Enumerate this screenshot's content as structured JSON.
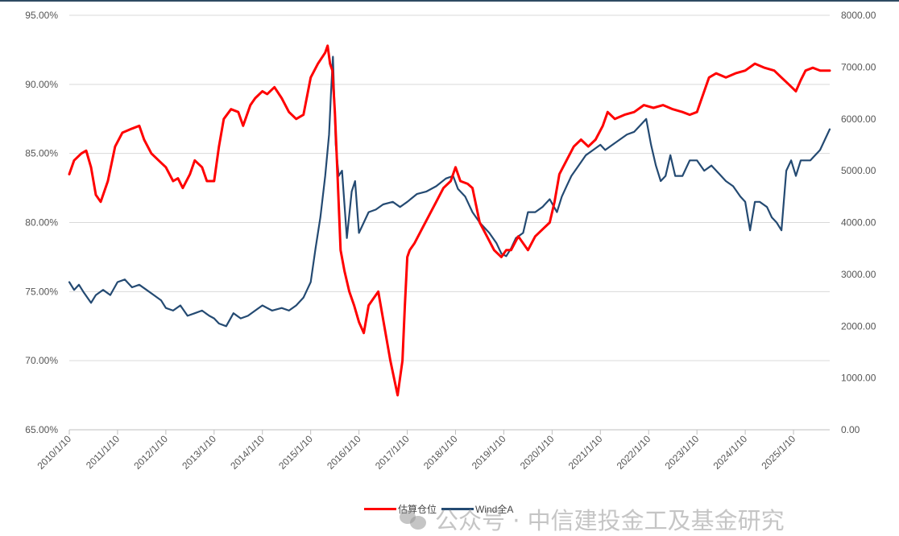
{
  "chart_data": {
    "type": "line",
    "left_axis": {
      "ticks": [
        "95.00%",
        "90.00%",
        "85.00%",
        "80.00%",
        "75.00%",
        "70.00%",
        "65.00%"
      ],
      "range": [
        65,
        95
      ]
    },
    "right_axis": {
      "ticks": [
        "8000.00",
        "7000.00",
        "6000.00",
        "5000.00",
        "4000.00",
        "3000.00",
        "2000.00",
        "1000.00",
        "0.00"
      ],
      "range": [
        0,
        8000
      ]
    },
    "x_ticks": [
      "2010/1/10",
      "2011/1/10",
      "2012/1/10",
      "2013/1/10",
      "2014/1/10",
      "2015/1/10",
      "2016/1/10",
      "2017/1/10",
      "2018/1/10",
      "2019/1/10",
      "2020/1/10",
      "2021/1/10",
      "2022/1/10",
      "2023/1/10",
      "2024/1/10",
      "2025/1/10"
    ],
    "x_range": [
      2010.0,
      2025.75
    ],
    "grid": "horizontal",
    "legend_position": "bottom",
    "series": [
      {
        "name": "估算仓位",
        "axis": "left",
        "color": "#ff0000",
        "x": [
          2010.0,
          2010.1,
          2010.25,
          2010.35,
          2010.45,
          2010.55,
          2010.65,
          2010.8,
          2010.95,
          2011.1,
          2011.3,
          2011.45,
          2011.55,
          2011.7,
          2011.85,
          2012.0,
          2012.15,
          2012.25,
          2012.35,
          2012.5,
          2012.6,
          2012.75,
          2012.85,
          2013.0,
          2013.1,
          2013.2,
          2013.35,
          2013.5,
          2013.6,
          2013.75,
          2013.85,
          2014.0,
          2014.1,
          2014.25,
          2014.4,
          2014.55,
          2014.7,
          2014.85,
          2015.0,
          2015.15,
          2015.3,
          2015.35,
          2015.4,
          2015.45,
          2015.5,
          2015.55,
          2015.62,
          2015.7,
          2015.8,
          2015.9,
          2016.0,
          2016.1,
          2016.2,
          2016.3,
          2016.4,
          2016.5,
          2016.65,
          2016.8,
          2016.9,
          2016.95,
          2017.0,
          2017.05,
          2017.15,
          2017.3,
          2017.45,
          2017.6,
          2017.75,
          2017.9,
          2018.0,
          2018.1,
          2018.25,
          2018.35,
          2018.5,
          2018.65,
          2018.8,
          2018.95,
          2019.05,
          2019.15,
          2019.3,
          2019.5,
          2019.65,
          2019.8,
          2019.95,
          2020.05,
          2020.15,
          2020.3,
          2020.45,
          2020.6,
          2020.75,
          2020.9,
          2021.05,
          2021.15,
          2021.3,
          2021.5,
          2021.7,
          2021.9,
          2022.1,
          2022.3,
          2022.5,
          2022.7,
          2022.85,
          2023.0,
          2023.1,
          2023.25,
          2023.4,
          2023.6,
          2023.8,
          2024.0,
          2024.2,
          2024.4,
          2024.6,
          2024.75,
          2024.9,
          2025.05,
          2025.15,
          2025.25,
          2025.4,
          2025.55,
          2025.75
        ],
        "values": [
          83.5,
          84.5,
          85.0,
          85.2,
          84.0,
          82.0,
          81.5,
          83.0,
          85.5,
          86.5,
          86.8,
          87.0,
          86.0,
          85.0,
          84.5,
          84.0,
          83.0,
          83.2,
          82.5,
          83.5,
          84.5,
          84.0,
          83.0,
          83.0,
          85.5,
          87.5,
          88.2,
          88.0,
          87.0,
          88.5,
          89.0,
          89.5,
          89.3,
          89.8,
          89.0,
          88.0,
          87.5,
          87.8,
          90.5,
          91.5,
          92.3,
          92.8,
          91.5,
          91.0,
          88.0,
          84.0,
          78.0,
          76.5,
          75.0,
          74.0,
          72.8,
          72.0,
          74.0,
          74.5,
          75.0,
          73.0,
          70.0,
          67.5,
          70.0,
          74.0,
          77.5,
          78.0,
          78.5,
          79.5,
          80.5,
          81.5,
          82.5,
          83.0,
          84.0,
          83.0,
          82.8,
          82.5,
          80.0,
          79.0,
          78.0,
          77.5,
          78.0,
          78.0,
          79.0,
          78.0,
          79.0,
          79.5,
          80.0,
          81.5,
          83.5,
          84.5,
          85.5,
          86.0,
          85.5,
          86.0,
          87.0,
          88.0,
          87.5,
          87.8,
          88.0,
          88.5,
          88.3,
          88.5,
          88.2,
          88.0,
          87.8,
          88.0,
          89.0,
          90.5,
          90.8,
          90.5,
          90.8,
          91.0,
          91.5,
          91.2,
          91.0,
          90.5,
          90.0,
          89.5,
          90.3,
          91.0,
          91.2,
          91.0,
          91.0
        ]
      },
      {
        "name": "Wind全A",
        "axis": "right",
        "color": "#244a72",
        "x": [
          2010.0,
          2010.1,
          2010.2,
          2010.3,
          2010.45,
          2010.55,
          2010.7,
          2010.85,
          2011.0,
          2011.15,
          2011.3,
          2011.45,
          2011.6,
          2011.75,
          2011.9,
          2012.0,
          2012.15,
          2012.3,
          2012.45,
          2012.6,
          2012.75,
          2012.9,
          2013.0,
          2013.1,
          2013.25,
          2013.4,
          2013.55,
          2013.7,
          2013.85,
          2014.0,
          2014.2,
          2014.4,
          2014.55,
          2014.7,
          2014.85,
          2015.0,
          2015.1,
          2015.2,
          2015.3,
          2015.38,
          2015.42,
          2015.46,
          2015.52,
          2015.58,
          2015.65,
          2015.75,
          2015.85,
          2015.92,
          2016.0,
          2016.1,
          2016.2,
          2016.35,
          2016.5,
          2016.7,
          2016.85,
          2017.0,
          2017.2,
          2017.4,
          2017.6,
          2017.8,
          2017.95,
          2018.05,
          2018.2,
          2018.35,
          2018.5,
          2018.7,
          2018.85,
          2018.95,
          2019.05,
          2019.15,
          2019.25,
          2019.4,
          2019.5,
          2019.65,
          2019.8,
          2019.95,
          2020.1,
          2020.2,
          2020.3,
          2020.4,
          2020.55,
          2020.7,
          2020.85,
          2021.0,
          2021.1,
          2021.25,
          2021.4,
          2021.55,
          2021.7,
          2021.85,
          2021.95,
          2022.05,
          2022.15,
          2022.25,
          2022.35,
          2022.45,
          2022.55,
          2022.7,
          2022.85,
          2023.0,
          2023.15,
          2023.3,
          2023.45,
          2023.6,
          2023.75,
          2023.9,
          2024.0,
          2024.1,
          2024.2,
          2024.3,
          2024.45,
          2024.55,
          2024.65,
          2024.75,
          2024.85,
          2024.95,
          2025.05,
          2025.15,
          2025.25,
          2025.35,
          2025.45,
          2025.55,
          2025.65,
          2025.75
        ],
        "values": [
          2850,
          2700,
          2800,
          2650,
          2450,
          2600,
          2700,
          2600,
          2850,
          2900,
          2750,
          2800,
          2700,
          2600,
          2500,
          2350,
          2300,
          2400,
          2200,
          2250,
          2300,
          2200,
          2150,
          2050,
          2000,
          2250,
          2150,
          2200,
          2300,
          2400,
          2300,
          2350,
          2300,
          2400,
          2550,
          2850,
          3500,
          4100,
          4900,
          5700,
          6500,
          7200,
          5500,
          4900,
          5000,
          3700,
          4600,
          4800,
          3800,
          4000,
          4200,
          4250,
          4350,
          4400,
          4300,
          4400,
          4550,
          4600,
          4700,
          4850,
          4900,
          4650,
          4500,
          4200,
          4000,
          3800,
          3600,
          3400,
          3350,
          3500,
          3700,
          3800,
          4200,
          4200,
          4300,
          4450,
          4200,
          4500,
          4700,
          4900,
          5100,
          5300,
          5400,
          5500,
          5400,
          5500,
          5600,
          5700,
          5750,
          5900,
          6000,
          5500,
          5100,
          4800,
          4900,
          5300,
          4900,
          4900,
          5200,
          5200,
          5000,
          5100,
          4950,
          4800,
          4700,
          4500,
          4400,
          3850,
          4400,
          4400,
          4300,
          4100,
          4000,
          3850,
          5000,
          5200,
          4900,
          5200,
          5200,
          5200,
          5300,
          5400,
          5600,
          5800
        ]
      }
    ]
  },
  "watermark_text": "公众号 · 中信建投金工及基金研究"
}
